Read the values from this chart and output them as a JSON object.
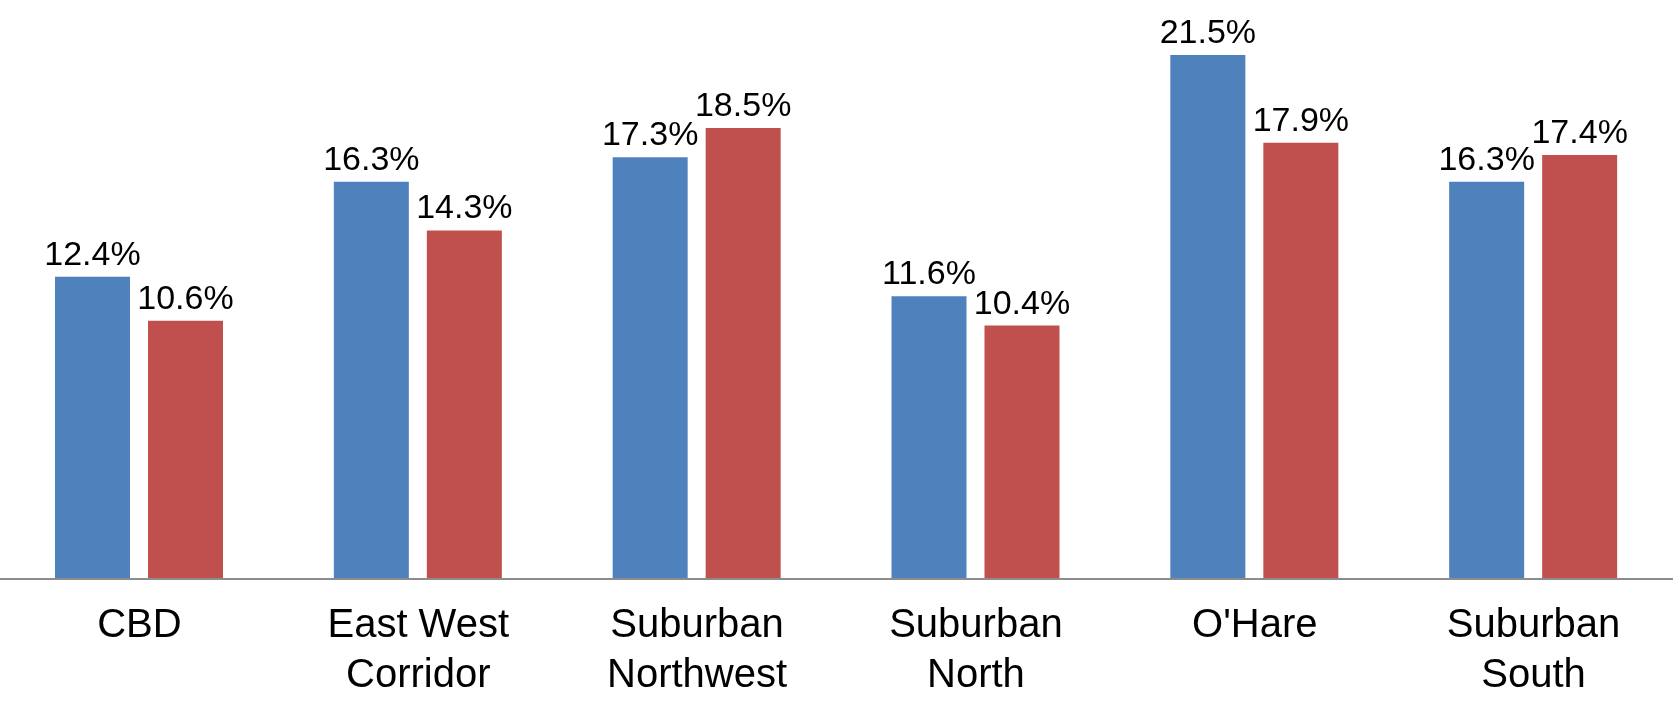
{
  "chart_data": {
    "type": "bar",
    "categories": [
      "CBD",
      "East West Corridor",
      "Suburban Northwest",
      "Suburban North",
      "O'Hare",
      "Suburban South"
    ],
    "series": [
      {
        "color": "#4f81bd",
        "values": [
          12.4,
          16.3,
          17.3,
          11.6,
          21.5,
          16.3
        ],
        "value_labels": [
          "12.4%",
          "16.3%",
          "17.3%",
          "11.6%",
          "21.5%",
          "16.3%"
        ]
      },
      {
        "color": "#c0504d",
        "values": [
          10.6,
          14.3,
          18.5,
          10.4,
          17.9,
          17.4
        ],
        "value_labels": [
          "10.6%",
          "14.3%",
          "18.5%",
          "10.4%",
          "17.9%",
          "17.4%"
        ]
      }
    ],
    "grid": false,
    "legend": false
  }
}
